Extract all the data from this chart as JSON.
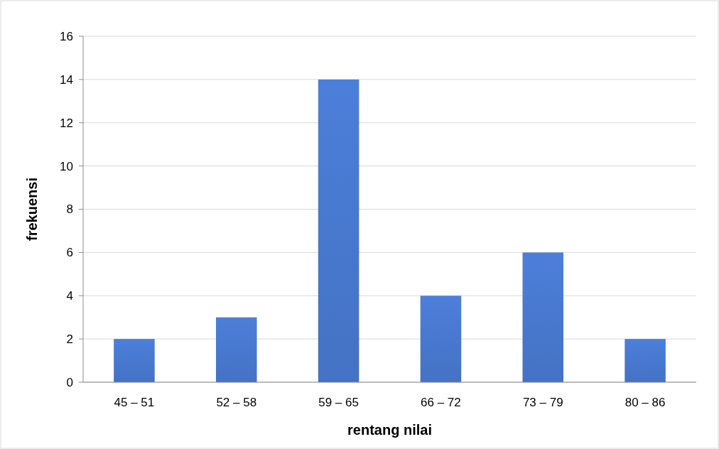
{
  "chart_data": {
    "type": "bar",
    "xlabel": "rentang nilai",
    "ylabel": "frekuensi",
    "categories": [
      "45 – 51",
      "52 – 58",
      "59 – 65",
      "66 – 72",
      "73 – 79",
      "80 – 86"
    ],
    "values": [
      2,
      3,
      14,
      4,
      6,
      2
    ],
    "color": "#4472c4",
    "ylim": [
      0,
      16
    ],
    "yticks": [
      0,
      2,
      4,
      6,
      8,
      10,
      12,
      14,
      16
    ],
    "grid": "y"
  }
}
